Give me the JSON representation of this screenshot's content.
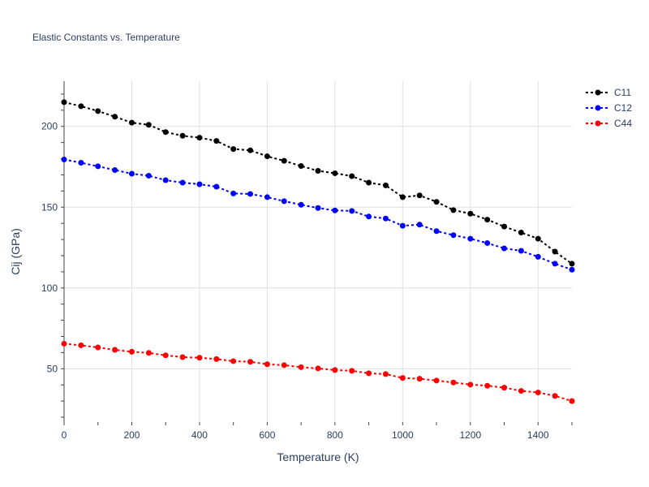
{
  "chart_data": {
    "type": "line",
    "title": "Elastic Constants vs. Temperature",
    "xlabel": "Temperature (K)",
    "ylabel": "Cij (GPa)",
    "xlim": [
      0,
      1500
    ],
    "ylim": [
      17,
      228
    ],
    "xticks": [
      0,
      200,
      400,
      600,
      800,
      1000,
      1200,
      1400
    ],
    "yticks": [
      50,
      100,
      150,
      200
    ],
    "grid": true,
    "legend_position": "top-right",
    "line_style": "dotted with circle markers",
    "x": [
      0,
      50,
      100,
      150,
      200,
      250,
      300,
      350,
      400,
      450,
      500,
      550,
      600,
      650,
      700,
      750,
      800,
      850,
      900,
      950,
      1000,
      1050,
      1100,
      1150,
      1200,
      1250,
      1300,
      1350,
      1400,
      1450,
      1500
    ],
    "series": [
      {
        "name": "C11",
        "color": "#000000",
        "values": [
          215.0,
          212.5,
          209.5,
          206.0,
          202.3,
          201.0,
          196.5,
          194.2,
          193.0,
          191.0,
          186.0,
          185.2,
          181.5,
          178.7,
          175.5,
          172.5,
          171.0,
          169.2,
          165.2,
          163.5,
          156.2,
          157.3,
          153.3,
          148.2,
          146.0,
          142.3,
          138.0,
          134.3,
          130.5,
          122.5,
          115.0
        ]
      },
      {
        "name": "C12",
        "color": "#0000ff",
        "values": [
          179.5,
          177.5,
          175.3,
          173.0,
          170.7,
          169.5,
          166.7,
          165.2,
          164.2,
          162.7,
          158.5,
          158.2,
          156.2,
          153.7,
          151.5,
          149.5,
          148.0,
          147.7,
          144.2,
          143.0,
          138.5,
          139.2,
          135.2,
          132.7,
          130.5,
          127.8,
          124.5,
          123.0,
          119.3,
          115.0,
          111.3
        ]
      },
      {
        "name": "C44",
        "color": "#ff0000",
        "values": [
          65.5,
          64.5,
          63.2,
          61.7,
          60.5,
          59.8,
          58.3,
          57.2,
          56.8,
          56.0,
          54.7,
          54.3,
          52.8,
          52.2,
          51.0,
          50.2,
          49.2,
          48.7,
          47.2,
          46.7,
          44.3,
          43.8,
          42.7,
          41.5,
          40.2,
          39.5,
          38.3,
          36.3,
          35.3,
          33.2,
          30.0
        ]
      }
    ]
  }
}
